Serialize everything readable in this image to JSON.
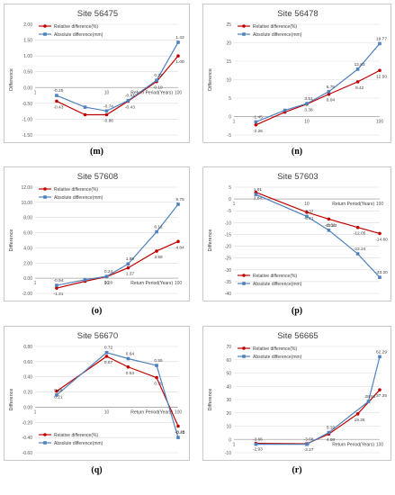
{
  "colors": {
    "relative": "#c00000",
    "absolute": "#4f81bd",
    "axis": "#a6a6a6",
    "grid": "#d9d9d9"
  },
  "chart_data": [
    {
      "type": "line",
      "id": "m",
      "panel_label": "(m)",
      "title": "Site 56475",
      "ylabel": "Difference",
      "xlabel": "Return Period(Years)",
      "xscale": "log",
      "x": [
        2,
        5,
        10,
        20,
        50,
        100
      ],
      "ylim": [
        -1.5,
        2.0
      ],
      "yticks": [
        -1.5,
        -1.0,
        -0.5,
        0.0,
        0.5,
        1.0,
        1.5,
        2.0
      ],
      "decimals": 2,
      "xtick_labels": [
        {
          "x": 1,
          "label": "1"
        },
        {
          "x": 10,
          "label": "10"
        },
        {
          "x": 100,
          "label": "100"
        }
      ],
      "legend": "top-left",
      "series": [
        {
          "name": "Relative difference(%)",
          "color": "#c00000",
          "marker": "circle",
          "values": [
            -0.43,
            -0.86,
            -0.86,
            -0.43,
            0.19,
            1.0
          ],
          "labels": [
            -0.43,
            null,
            -0.86,
            -0.43,
            0.19,
            1.0
          ]
        },
        {
          "name": "Absolute difference(mm)",
          "color": "#4f81bd",
          "marker": "square",
          "values": [
            -0.25,
            -0.62,
            -0.74,
            -0.41,
            0.23,
            1.43
          ],
          "labels": [
            -0.25,
            null,
            -0.74,
            -0.41,
            0.23,
            1.43
          ]
        }
      ]
    },
    {
      "type": "line",
      "id": "n",
      "panel_label": "(n)",
      "title": "Site 56478",
      "ylabel": "Difference",
      "xlabel": "",
      "xscale": "log",
      "x": [
        2,
        5,
        10,
        20,
        50,
        100
      ],
      "ylim": [
        -5,
        25
      ],
      "yticks": [
        -5,
        0,
        5,
        10,
        15,
        20,
        25
      ],
      "decimals": 0,
      "xtick_labels": [
        {
          "x": 1,
          "label": "1"
        },
        {
          "x": 10,
          "label": "10"
        },
        {
          "x": 100,
          "label": "100"
        }
      ],
      "legend": "top-left",
      "series": [
        {
          "name": "Relative difference(%)",
          "color": "#c00000",
          "marker": "circle",
          "values": [
            -2.26,
            1.2,
            3.38,
            6.04,
            9.42,
            12.5
          ],
          "labels": [
            -2.26,
            null,
            3.38,
            6.04,
            9.42,
            12.5
          ]
        },
        {
          "name": "Absolute difference(mm)",
          "color": "#4f81bd",
          "marker": "square",
          "values": [
            -1.45,
            1.7,
            3.51,
            6.75,
            12.83,
            19.77
          ],
          "labels": [
            -1.45,
            null,
            3.51,
            6.75,
            12.83,
            19.77
          ]
        }
      ]
    },
    {
      "type": "line",
      "id": "o",
      "panel_label": "(o)",
      "title": "Site 57608",
      "ylabel": "Difference",
      "xlabel": "Return Period(Years)",
      "xscale": "log",
      "x": [
        2,
        5,
        10,
        20,
        50,
        100
      ],
      "ylim": [
        -2.0,
        12.0
      ],
      "yticks": [
        -2.0,
        0.0,
        2.0,
        4.0,
        6.0,
        8.0,
        10.0,
        12.0
      ],
      "decimals": 2,
      "xtick_labels": [
        {
          "x": 1,
          "label": "1"
        },
        {
          "x": 10,
          "label": "10"
        },
        {
          "x": 100,
          "label": "100"
        }
      ],
      "legend": "top-left",
      "series": [
        {
          "name": "Relative difference(%)",
          "color": "#c00000",
          "marker": "circle",
          "values": [
            -1.31,
            -0.4,
            0.2,
            1.37,
            3.58,
            4.84
          ],
          "labels": [
            -1.31,
            null,
            0.2,
            1.37,
            3.58,
            4.84
          ]
        },
        {
          "name": "Absolute difference(mm)",
          "color": "#4f81bd",
          "marker": "square",
          "values": [
            -0.94,
            -0.2,
            0.24,
            1.89,
            6.12,
            9.75
          ],
          "labels": [
            -0.94,
            null,
            0.24,
            1.89,
            6.12,
            9.75
          ]
        }
      ]
    },
    {
      "type": "line",
      "id": "p",
      "panel_label": "(p)",
      "title": "Site 57603",
      "ylabel": "Difference",
      "xlabel": "Return Period(Years)",
      "xscale": "log",
      "x": [
        2,
        10,
        20,
        50,
        100
      ],
      "ylim": [
        -40,
        5
      ],
      "yticks": [
        -40,
        -35,
        -30,
        -25,
        -20,
        -15,
        -10,
        -5,
        0,
        5
      ],
      "decimals": 0,
      "xtick_labels": [
        {
          "x": 1,
          "label": "1"
        },
        {
          "x": 10,
          "label": "10"
        },
        {
          "x": 100,
          "label": "100"
        }
      ],
      "legend": "bottom-left",
      "series": [
        {
          "name": "Relative difference(%)",
          "color": "#c00000",
          "marker": "circle",
          "values": [
            2.84,
            -5.61,
            -8.51,
            -12.05,
            -14.6
          ],
          "labels": [
            2.84,
            -5.61,
            -8.51,
            -12.05,
            -14.6
          ]
        },
        {
          "name": "Absolute difference(mm)",
          "color": "#4f81bd",
          "marker": "square",
          "values": [
            1.91,
            -7.37,
            -13.23,
            -23.24,
            -33.2
          ],
          "labels": [
            1.91,
            -7.37,
            -13.23,
            -23.24,
            -33.2
          ]
        }
      ]
    },
    {
      "type": "line",
      "id": "q",
      "panel_label": "(q)",
      "title": "Site 56670",
      "ylabel": "Difference",
      "xlabel": "Return Period(Years)",
      "xscale": "log",
      "x": [
        2,
        10,
        20,
        50,
        100
      ],
      "ylim": [
        -0.6,
        0.8
      ],
      "yticks": [
        -0.6,
        -0.4,
        -0.2,
        0.0,
        0.2,
        0.4,
        0.6,
        0.8
      ],
      "decimals": 2,
      "xtick_labels": [
        {
          "x": 1,
          "label": "1"
        },
        {
          "x": 10,
          "label": "10"
        },
        {
          "x": 100,
          "label": "100"
        }
      ],
      "legend": "bottom-left",
      "series": [
        {
          "name": "Relative difference(%)",
          "color": "#c00000",
          "marker": "circle",
          "values": [
            0.21,
            0.67,
            0.53,
            0.39,
            -0.25
          ],
          "labels": [
            0.21,
            0.67,
            0.53,
            0.39,
            -0.25
          ]
        },
        {
          "name": "Absolute difference(mm)",
          "color": "#4f81bd",
          "marker": "square",
          "values": [
            0.16,
            0.72,
            0.64,
            0.55,
            -0.4
          ],
          "labels": [
            0.16,
            0.72,
            0.64,
            0.55,
            -0.4
          ]
        }
      ]
    },
    {
      "type": "line",
      "id": "r",
      "panel_label": "(r)",
      "title": "Site 56665",
      "ylabel": "Difference",
      "xlabel": "Return Period(Years)",
      "xscale": "log",
      "x": [
        2,
        10,
        20,
        50,
        70,
        100
      ],
      "ylim": [
        -10,
        70
      ],
      "yticks": [
        -10,
        0,
        10,
        20,
        30,
        40,
        50,
        60,
        70
      ],
      "decimals": 0,
      "xtick_labels": [
        {
          "x": 1,
          "label": "1"
        },
        {
          "x": 10,
          "label": "10"
        },
        {
          "x": 100,
          "label": "100"
        }
      ],
      "legend": "top-left",
      "series": [
        {
          "name": "Relative difference(%)",
          "color": "#c00000",
          "marker": "circle",
          "values": [
            -2.93,
            -3.27,
            4.08,
            19.26,
            null,
            37.35
          ],
          "labels": [
            -2.93,
            -3.27,
            4.08,
            19.26,
            null,
            37.35
          ]
        },
        {
          "name": "Absolute difference(mm)",
          "color": "#4f81bd",
          "marker": "square",
          "values": [
            -3.66,
            -3.68,
            5.19,
            null,
            28.56,
            62.29
          ],
          "labels": [
            -3.66,
            -3.68,
            5.19,
            null,
            28.56,
            62.29
          ]
        }
      ]
    }
  ]
}
